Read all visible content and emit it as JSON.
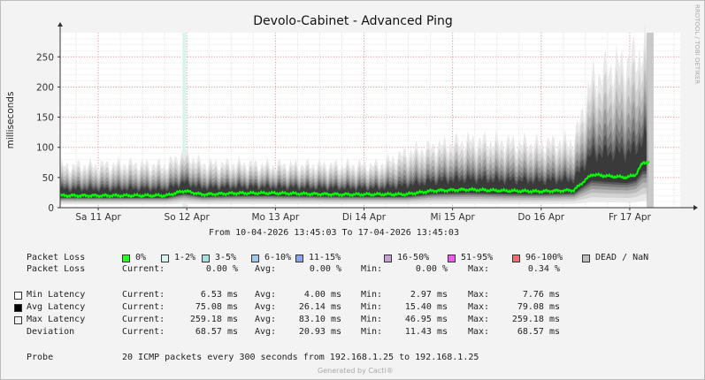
{
  "chart_data": {
    "type": "area",
    "title": "Devolo-Cabinet - Advanced Ping",
    "ylabel": "milliseconds",
    "watermark": "RRDTOOL / TOBI OETIKER",
    "ylim": [
      0,
      290
    ],
    "yticks": [
      0,
      50,
      100,
      150,
      200,
      250
    ],
    "xticks": [
      "Sa 11 Apr",
      "So 12 Apr",
      "Mo 13 Apr",
      "Di 14 Apr",
      "Mi 15 Apr",
      "Do 16 Apr",
      "Fr 17 Apr"
    ],
    "xlim_days": [
      0,
      7
    ],
    "xtick_days": [
      0.43,
      1.43,
      2.43,
      3.43,
      4.43,
      5.43,
      6.43
    ],
    "series": [
      {
        "name": "Avg Latency",
        "color": "#00ff00",
        "x_days": [
          0,
          0.4,
          0.8,
          1.2,
          1.4,
          1.6,
          2.0,
          2.4,
          2.8,
          3.2,
          3.6,
          3.9,
          4.2,
          4.6,
          5.0,
          5.4,
          5.8,
          6.0,
          6.2,
          6.4,
          6.5,
          6.58,
          6.65
        ],
        "values": [
          20,
          20,
          20,
          20,
          28,
          22,
          24,
          24,
          23,
          22,
          22,
          22,
          28,
          30,
          28,
          27,
          29,
          55,
          52,
          50,
          55,
          75,
          75
        ]
      },
      {
        "name": "Max Latency",
        "color": "#eeeeee",
        "x_days": [
          0,
          0.4,
          0.8,
          1.2,
          1.4,
          1.6,
          2.0,
          2.4,
          2.8,
          3.2,
          3.6,
          3.9,
          4.2,
          4.6,
          5.0,
          5.4,
          5.8,
          6.0,
          6.2,
          6.4,
          6.5,
          6.58,
          6.65
        ],
        "values": [
          68,
          70,
          72,
          70,
          90,
          72,
          72,
          70,
          70,
          70,
          70,
          90,
          100,
          110,
          108,
          105,
          110,
          210,
          230,
          240,
          250,
          259,
          259
        ]
      }
    ],
    "markers": {
      "loss_band_day": 1.38,
      "nan_band_days": [
        6.62,
        6.7
      ]
    }
  },
  "range_text": "From 10-04-2026 13:45:03 To 17-04-2026 13:45:03",
  "loss_legend": {
    "label": "Packet Loss",
    "items": [
      {
        "label": "0%",
        "color": "#26ff26"
      },
      {
        "label": "1-2%",
        "color": "#d6f5ef"
      },
      {
        "label": "3-5%",
        "color": "#a6e0de"
      },
      {
        "label": "6-10%",
        "color": "#a2c8ea"
      },
      {
        "label": "11-15%",
        "color": "#8da2e8"
      },
      {
        "label": "16-50%",
        "color": "#c4a2d8"
      },
      {
        "label": "51-95%",
        "color": "#ee5bf3"
      },
      {
        "label": "96-100%",
        "color": "#ee7070"
      },
      {
        "label": "DEAD / NaN",
        "color": "#bdbdbd"
      }
    ]
  },
  "stats": [
    {
      "label": "Packet Loss",
      "swatch": "",
      "current": "0.00 %",
      "avg": "0.00 %",
      "min": "0.00 %",
      "max": "0.34 %"
    },
    {
      "label": "Min Latency",
      "swatch": "#ffffff",
      "current": "6.53 ms",
      "avg": "4.00 ms",
      "min": "2.97 ms",
      "max": "7.76 ms"
    },
    {
      "label": "Avg Latency",
      "swatch": "#000000",
      "current": "75.08 ms",
      "avg": "26.14 ms",
      "min": "15.40 ms",
      "max": "79.08 ms"
    },
    {
      "label": "Max Latency",
      "swatch": "#f2f2f2",
      "current": "259.18 ms",
      "avg": "83.10 ms",
      "min": "46.95 ms",
      "max": "259.18 ms"
    },
    {
      "label": "Deviation",
      "swatch": "",
      "current": "68.57 ms",
      "avg": "20.93 ms",
      "min": "11.43 ms",
      "max": "68.57 ms"
    }
  ],
  "col_labels": {
    "current": "Current:",
    "avg": "Avg:",
    "min": "Min:",
    "max": "Max:"
  },
  "probe": {
    "label": "Probe",
    "text": "20 ICMP packets every 300 seconds from 192.168.1.25 to 192.168.1.25"
  },
  "footer": "Generated by Cacti®"
}
